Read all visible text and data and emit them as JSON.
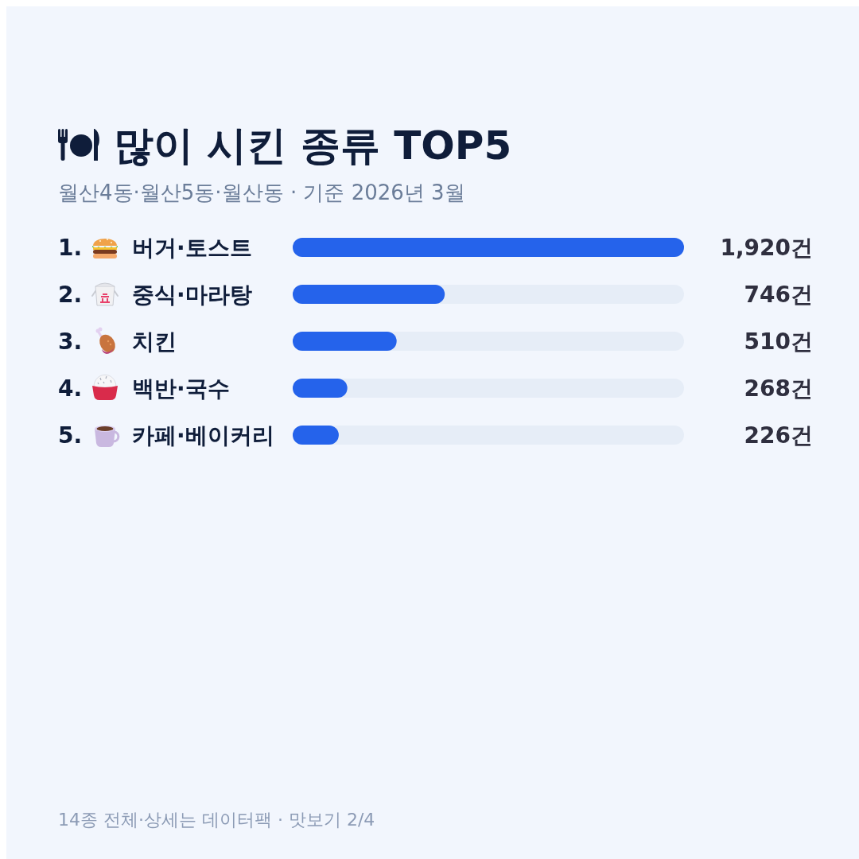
{
  "chart_data": {
    "type": "bar",
    "orientation": "horizontal",
    "title": "많이 시킨 종류 TOP5",
    "subtitle": "월산4동·월산5동·월산동 · 기준 2026년 3월",
    "categories": [
      "1. 버거·토스트",
      "2. 중식·마라탕",
      "3. 치킨",
      "4. 백반·국수",
      "5. 카페·베이커리"
    ],
    "values": [
      1920,
      746,
      510,
      268,
      226
    ],
    "value_labels": [
      "1,920건",
      "746건",
      "510건",
      "268건",
      "226건"
    ],
    "color": "#2563eb",
    "annotations": [
      "14종 전체·상세는 데이터팩 · 맛보기 2/4"
    ]
  }
}
